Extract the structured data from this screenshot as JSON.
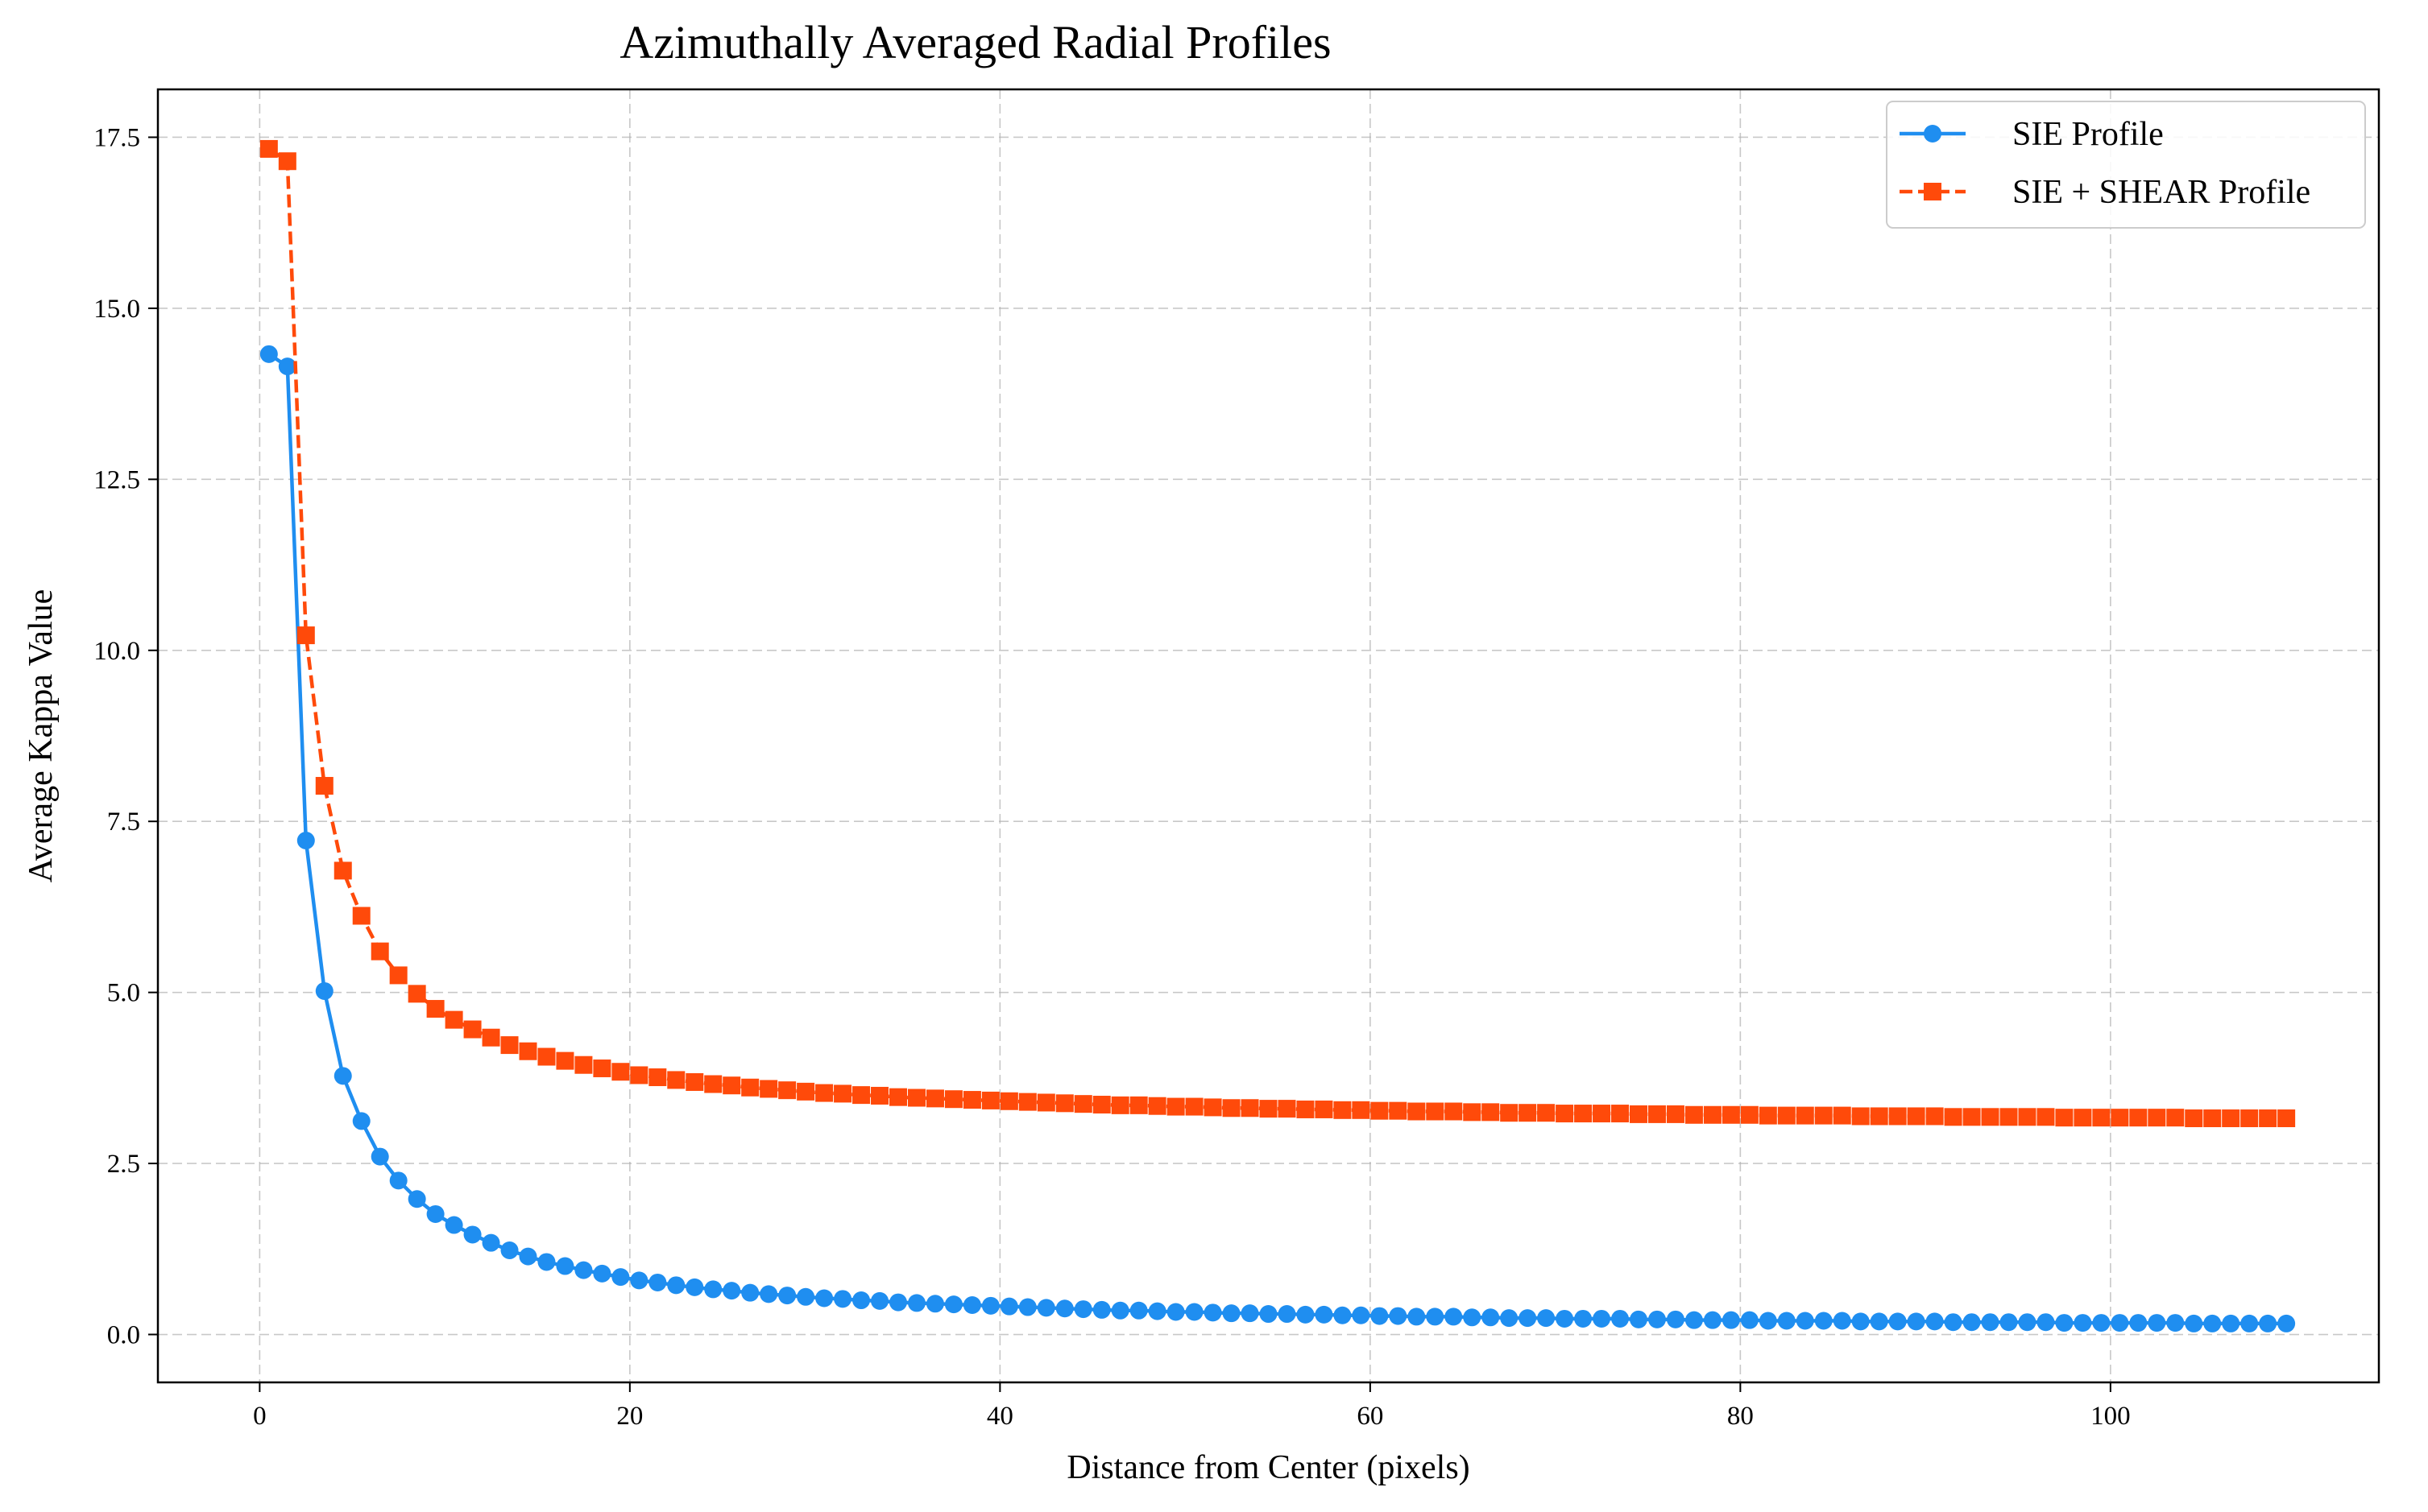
{
  "chart_data": {
    "type": "line",
    "title": "Azimuthally Averaged Radial Profiles",
    "xlabel": "Distance from Center (pixels)",
    "ylabel": "Average Kappa Value",
    "xlim": [
      -5.5,
      114.5
    ],
    "ylim": [
      -0.7,
      18.2
    ],
    "x_ticks": [
      0,
      20,
      40,
      60,
      80,
      100
    ],
    "x_tick_labels": [
      "0",
      "20",
      "40",
      "60",
      "80",
      "100"
    ],
    "y_ticks": [
      0,
      2.5,
      5,
      7.5,
      10,
      12.5,
      15,
      17.5
    ],
    "y_tick_labels": [
      "0.0",
      "2.5",
      "5.0",
      "7.5",
      "10.0",
      "12.5",
      "15.0",
      "17.5"
    ],
    "grid": true,
    "legend_position": "top-right",
    "x_start": 0.5,
    "x_step": 1,
    "series": [
      {
        "name": "SIE Profile",
        "color": "#1f8ef0",
        "line_style": "solid",
        "marker": "circle",
        "values": [
          14.33,
          14.15,
          7.22,
          5.02,
          3.78,
          3.12,
          2.6,
          2.25,
          1.98,
          1.76,
          1.6,
          1.46,
          1.34,
          1.23,
          1.14,
          1.06,
          1.0,
          0.94,
          0.89,
          0.84,
          0.79,
          0.76,
          0.72,
          0.69,
          0.66,
          0.64,
          0.61,
          0.59,
          0.57,
          0.55,
          0.53,
          0.52,
          0.5,
          0.49,
          0.47,
          0.46,
          0.45,
          0.44,
          0.43,
          0.42,
          0.41,
          0.4,
          0.39,
          0.38,
          0.37,
          0.36,
          0.35,
          0.35,
          0.34,
          0.33,
          0.33,
          0.32,
          0.31,
          0.31,
          0.3,
          0.3,
          0.29,
          0.29,
          0.28,
          0.28,
          0.27,
          0.27,
          0.26,
          0.26,
          0.26,
          0.25,
          0.25,
          0.24,
          0.24,
          0.24,
          0.23,
          0.23,
          0.23,
          0.23,
          0.22,
          0.22,
          0.22,
          0.21,
          0.21,
          0.21,
          0.21,
          0.2,
          0.2,
          0.2,
          0.2,
          0.2,
          0.19,
          0.19,
          0.19,
          0.19,
          0.19,
          0.18,
          0.18,
          0.18,
          0.18,
          0.18,
          0.18,
          0.17,
          0.17,
          0.17,
          0.17,
          0.17,
          0.17,
          0.17,
          0.16,
          0.16,
          0.16,
          0.16,
          0.16,
          0.16
        ]
      },
      {
        "name": "SIE + SHEAR Profile",
        "color": "#ff4a0a",
        "line_style": "dashed",
        "marker": "square",
        "values": [
          17.33,
          17.15,
          10.22,
          8.02,
          6.78,
          6.12,
          5.6,
          5.25,
          4.98,
          4.76,
          4.6,
          4.46,
          4.34,
          4.23,
          4.14,
          4.06,
          4.0,
          3.94,
          3.89,
          3.84,
          3.79,
          3.76,
          3.72,
          3.69,
          3.66,
          3.64,
          3.61,
          3.59,
          3.57,
          3.55,
          3.53,
          3.52,
          3.5,
          3.49,
          3.47,
          3.46,
          3.45,
          3.44,
          3.43,
          3.42,
          3.41,
          3.4,
          3.39,
          3.38,
          3.37,
          3.36,
          3.35,
          3.35,
          3.34,
          3.33,
          3.33,
          3.32,
          3.31,
          3.31,
          3.3,
          3.3,
          3.29,
          3.29,
          3.28,
          3.28,
          3.27,
          3.27,
          3.26,
          3.26,
          3.26,
          3.25,
          3.25,
          3.24,
          3.24,
          3.24,
          3.23,
          3.23,
          3.23,
          3.23,
          3.22,
          3.22,
          3.22,
          3.21,
          3.21,
          3.21,
          3.21,
          3.2,
          3.2,
          3.2,
          3.2,
          3.2,
          3.19,
          3.19,
          3.19,
          3.19,
          3.19,
          3.18,
          3.18,
          3.18,
          3.18,
          3.18,
          3.18,
          3.17,
          3.17,
          3.17,
          3.17,
          3.17,
          3.17,
          3.17,
          3.16,
          3.16,
          3.16,
          3.16,
          3.16,
          3.16
        ]
      }
    ]
  }
}
